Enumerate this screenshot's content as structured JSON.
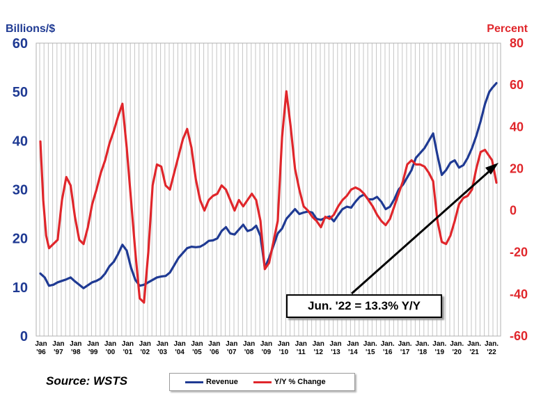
{
  "chart_data": {
    "type": "line",
    "source": "Source: WSTS",
    "annotation": "Jun. '22 = 13.3% Y/Y",
    "y_left": {
      "label": "Billions/$",
      "lim": [
        0,
        60
      ],
      "ticks": [
        0,
        10,
        20,
        30,
        40,
        50,
        60
      ],
      "color": "#1f3a93"
    },
    "y_right": {
      "label": "Percent",
      "lim": [
        -60,
        80
      ],
      "ticks": [
        -60,
        -40,
        -20,
        0,
        20,
        40,
        60,
        80
      ],
      "color": "#e0262b"
    },
    "x_ticks": [
      {
        "top": "Jan",
        "bottom": "'96"
      },
      {
        "top": "Jan",
        "bottom": "'97"
      },
      {
        "top": "Jan",
        "bottom": "'98"
      },
      {
        "top": "Jan",
        "bottom": "'99"
      },
      {
        "top": "Jan",
        "bottom": "'00"
      },
      {
        "top": "Jan",
        "bottom": "'01"
      },
      {
        "top": "Jan",
        "bottom": "'02"
      },
      {
        "top": "Jan",
        "bottom": "'03"
      },
      {
        "top": "Jan",
        "bottom": "'04"
      },
      {
        "top": "Jan",
        "bottom": "'05"
      },
      {
        "top": "Jan",
        "bottom": "'06"
      },
      {
        "top": "Jan",
        "bottom": "'07"
      },
      {
        "top": "Jan",
        "bottom": "'08"
      },
      {
        "top": "Jan",
        "bottom": "'09"
      },
      {
        "top": "Jan",
        "bottom": "'10"
      },
      {
        "top": "Jan",
        "bottom": "'11"
      },
      {
        "top": "Jan",
        "bottom": "'12"
      },
      {
        "top": "Jan",
        "bottom": "'13"
      },
      {
        "top": "Jan",
        "bottom": "'14"
      },
      {
        "top": "Jan.",
        "bottom": "'15"
      },
      {
        "top": "Jan.",
        "bottom": "'16"
      },
      {
        "top": "Jan.",
        "bottom": "'17"
      },
      {
        "top": "Jan.",
        "bottom": "'18"
      },
      {
        "top": "Jan.",
        "bottom": "'19"
      },
      {
        "top": "Jan.",
        "bottom": "'20"
      },
      {
        "top": "Jan.",
        "bottom": "'21"
      },
      {
        "top": "Jan.",
        "bottom": "'22"
      }
    ],
    "x_range": [
      "1996-01",
      "2022-06"
    ],
    "grid": "vertical",
    "legend_position": "bottom-center",
    "series": [
      {
        "name": "Revenue",
        "axis": "left",
        "color": "#1f3a93",
        "points": [
          [
            "1996-01",
            12.8
          ],
          [
            "1996-04",
            12
          ],
          [
            "1996-07",
            10.3
          ],
          [
            "1996-10",
            10.5
          ],
          [
            "1997-01",
            11
          ],
          [
            "1997-04",
            11.3
          ],
          [
            "1997-07",
            11.6
          ],
          [
            "1997-10",
            12
          ],
          [
            "1998-01",
            11.2
          ],
          [
            "1998-04",
            10.5
          ],
          [
            "1998-07",
            9.8
          ],
          [
            "1998-10",
            10.4
          ],
          [
            "1999-01",
            11
          ],
          [
            "1999-04",
            11.3
          ],
          [
            "1999-07",
            11.8
          ],
          [
            "1999-10",
            12.8
          ],
          [
            "2000-01",
            14.3
          ],
          [
            "2000-04",
            15.2
          ],
          [
            "2000-07",
            16.8
          ],
          [
            "2000-10",
            18.7
          ],
          [
            "2001-01",
            17.5
          ],
          [
            "2001-04",
            14
          ],
          [
            "2001-07",
            11.5
          ],
          [
            "2001-10",
            10.3
          ],
          [
            "2002-01",
            10.5
          ],
          [
            "2002-04",
            11
          ],
          [
            "2002-07",
            11.5
          ],
          [
            "2002-10",
            12
          ],
          [
            "2003-01",
            12.2
          ],
          [
            "2003-04",
            12.3
          ],
          [
            "2003-07",
            13
          ],
          [
            "2003-10",
            14.5
          ],
          [
            "2004-01",
            16
          ],
          [
            "2004-04",
            17
          ],
          [
            "2004-07",
            18
          ],
          [
            "2004-10",
            18.3
          ],
          [
            "2005-01",
            18.2
          ],
          [
            "2005-04",
            18.3
          ],
          [
            "2005-07",
            18.8
          ],
          [
            "2005-10",
            19.5
          ],
          [
            "2006-01",
            19.6
          ],
          [
            "2006-04",
            20
          ],
          [
            "2006-07",
            21.5
          ],
          [
            "2006-10",
            22.3
          ],
          [
            "2007-01",
            21
          ],
          [
            "2007-04",
            20.8
          ],
          [
            "2007-07",
            21.8
          ],
          [
            "2007-10",
            22.8
          ],
          [
            "2008-01",
            21.5
          ],
          [
            "2008-04",
            21.8
          ],
          [
            "2008-07",
            22.6
          ],
          [
            "2008-10",
            20.5
          ],
          [
            "2009-01",
            14
          ],
          [
            "2009-04",
            16
          ],
          [
            "2009-07",
            18.5
          ],
          [
            "2009-10",
            21
          ],
          [
            "2010-01",
            22
          ],
          [
            "2010-04",
            24
          ],
          [
            "2010-07",
            25
          ],
          [
            "2010-10",
            26
          ],
          [
            "2011-01",
            25
          ],
          [
            "2011-04",
            25.3
          ],
          [
            "2011-07",
            25.5
          ],
          [
            "2011-10",
            25.3
          ],
          [
            "2012-01",
            24
          ],
          [
            "2012-04",
            23.8
          ],
          [
            "2012-07",
            24.2
          ],
          [
            "2012-10",
            24.5
          ],
          [
            "2013-01",
            23.5
          ],
          [
            "2013-04",
            24.8
          ],
          [
            "2013-07",
            26
          ],
          [
            "2013-10",
            26.5
          ],
          [
            "2014-01",
            26.3
          ],
          [
            "2014-04",
            27.5
          ],
          [
            "2014-07",
            28.5
          ],
          [
            "2014-10",
            29
          ],
          [
            "2015-01",
            28
          ],
          [
            "2015-04",
            28
          ],
          [
            "2015-07",
            28.5
          ],
          [
            "2015-10",
            27.5
          ],
          [
            "2016-01",
            26
          ],
          [
            "2016-04",
            26.5
          ],
          [
            "2016-07",
            28
          ],
          [
            "2016-10",
            30
          ],
          [
            "2017-01",
            31
          ],
          [
            "2017-04",
            32.5
          ],
          [
            "2017-07",
            34
          ],
          [
            "2017-10",
            36.5
          ],
          [
            "2018-01",
            37.5
          ],
          [
            "2018-04",
            38.5
          ],
          [
            "2018-07",
            40
          ],
          [
            "2018-10",
            41.5
          ],
          [
            "2019-01",
            37
          ],
          [
            "2019-04",
            33
          ],
          [
            "2019-07",
            34
          ],
          [
            "2019-10",
            35.5
          ],
          [
            "2020-01",
            36
          ],
          [
            "2020-04",
            34.5
          ],
          [
            "2020-07",
            35
          ],
          [
            "2020-10",
            36.5
          ],
          [
            "2021-01",
            38.5
          ],
          [
            "2021-04",
            41
          ],
          [
            "2021-07",
            44
          ],
          [
            "2021-10",
            47.5
          ],
          [
            "2022-01",
            50
          ],
          [
            "2022-03",
            50.8
          ],
          [
            "2022-06",
            51.8
          ]
        ]
      },
      {
        "name": "Y/Y % Change",
        "axis": "right",
        "color": "#e0262b",
        "points": [
          [
            "1996-01",
            33
          ],
          [
            "1996-03",
            5
          ],
          [
            "1996-05",
            -12
          ],
          [
            "1996-07",
            -18
          ],
          [
            "1996-10",
            -16
          ],
          [
            "1997-01",
            -14
          ],
          [
            "1997-04",
            5
          ],
          [
            "1997-07",
            16
          ],
          [
            "1997-10",
            12
          ],
          [
            "1998-01",
            -3
          ],
          [
            "1998-04",
            -14
          ],
          [
            "1998-07",
            -16
          ],
          [
            "1998-10",
            -8
          ],
          [
            "1999-01",
            3
          ],
          [
            "1999-04",
            10
          ],
          [
            "1999-07",
            18
          ],
          [
            "1999-10",
            24
          ],
          [
            "2000-01",
            32
          ],
          [
            "2000-04",
            38
          ],
          [
            "2000-07",
            45
          ],
          [
            "2000-10",
            51
          ],
          [
            "2001-01",
            30
          ],
          [
            "2001-04",
            5
          ],
          [
            "2001-07",
            -20
          ],
          [
            "2001-10",
            -42
          ],
          [
            "2002-01",
            -44
          ],
          [
            "2002-04",
            -20
          ],
          [
            "2002-07",
            12
          ],
          [
            "2002-10",
            22
          ],
          [
            "2003-01",
            21
          ],
          [
            "2003-04",
            12
          ],
          [
            "2003-07",
            10
          ],
          [
            "2003-10",
            18
          ],
          [
            "2004-01",
            26
          ],
          [
            "2004-04",
            34
          ],
          [
            "2004-07",
            39
          ],
          [
            "2004-10",
            30
          ],
          [
            "2005-01",
            15
          ],
          [
            "2005-04",
            5
          ],
          [
            "2005-07",
            0
          ],
          [
            "2005-10",
            5
          ],
          [
            "2006-01",
            7
          ],
          [
            "2006-04",
            8
          ],
          [
            "2006-07",
            12
          ],
          [
            "2006-10",
            10
          ],
          [
            "2007-01",
            5
          ],
          [
            "2007-04",
            0
          ],
          [
            "2007-07",
            5
          ],
          [
            "2007-10",
            2
          ],
          [
            "2008-01",
            5
          ],
          [
            "2008-04",
            8
          ],
          [
            "2008-07",
            5
          ],
          [
            "2008-10",
            -5
          ],
          [
            "2009-01",
            -28
          ],
          [
            "2009-04",
            -25
          ],
          [
            "2009-07",
            -15
          ],
          [
            "2009-10",
            -5
          ],
          [
            "2010-01",
            35
          ],
          [
            "2010-04",
            57
          ],
          [
            "2010-07",
            40
          ],
          [
            "2010-10",
            20
          ],
          [
            "2011-01",
            10
          ],
          [
            "2011-04",
            2
          ],
          [
            "2011-07",
            0
          ],
          [
            "2011-10",
            -3
          ],
          [
            "2012-01",
            -5
          ],
          [
            "2012-04",
            -8
          ],
          [
            "2012-07",
            -3
          ],
          [
            "2012-10",
            -4
          ],
          [
            "2013-01",
            -2
          ],
          [
            "2013-04",
            2
          ],
          [
            "2013-07",
            5
          ],
          [
            "2013-10",
            7
          ],
          [
            "2014-01",
            10
          ],
          [
            "2014-04",
            11
          ],
          [
            "2014-07",
            10
          ],
          [
            "2014-10",
            8
          ],
          [
            "2015-01",
            5
          ],
          [
            "2015-04",
            2
          ],
          [
            "2015-07",
            -2
          ],
          [
            "2015-10",
            -5
          ],
          [
            "2016-01",
            -7
          ],
          [
            "2016-04",
            -4
          ],
          [
            "2016-07",
            2
          ],
          [
            "2016-10",
            8
          ],
          [
            "2017-01",
            14
          ],
          [
            "2017-04",
            22
          ],
          [
            "2017-07",
            24
          ],
          [
            "2017-10",
            22
          ],
          [
            "2018-01",
            22
          ],
          [
            "2018-04",
            21
          ],
          [
            "2018-07",
            18
          ],
          [
            "2018-10",
            14
          ],
          [
            "2019-01",
            -5
          ],
          [
            "2019-04",
            -15
          ],
          [
            "2019-07",
            -16
          ],
          [
            "2019-10",
            -12
          ],
          [
            "2020-01",
            -5
          ],
          [
            "2020-04",
            3
          ],
          [
            "2020-07",
            6
          ],
          [
            "2020-10",
            7
          ],
          [
            "2021-01",
            10
          ],
          [
            "2021-04",
            20
          ],
          [
            "2021-07",
            28
          ],
          [
            "2021-10",
            29
          ],
          [
            "2022-01",
            26
          ],
          [
            "2022-03",
            24
          ],
          [
            "2022-06",
            13.3
          ]
        ]
      }
    ]
  }
}
